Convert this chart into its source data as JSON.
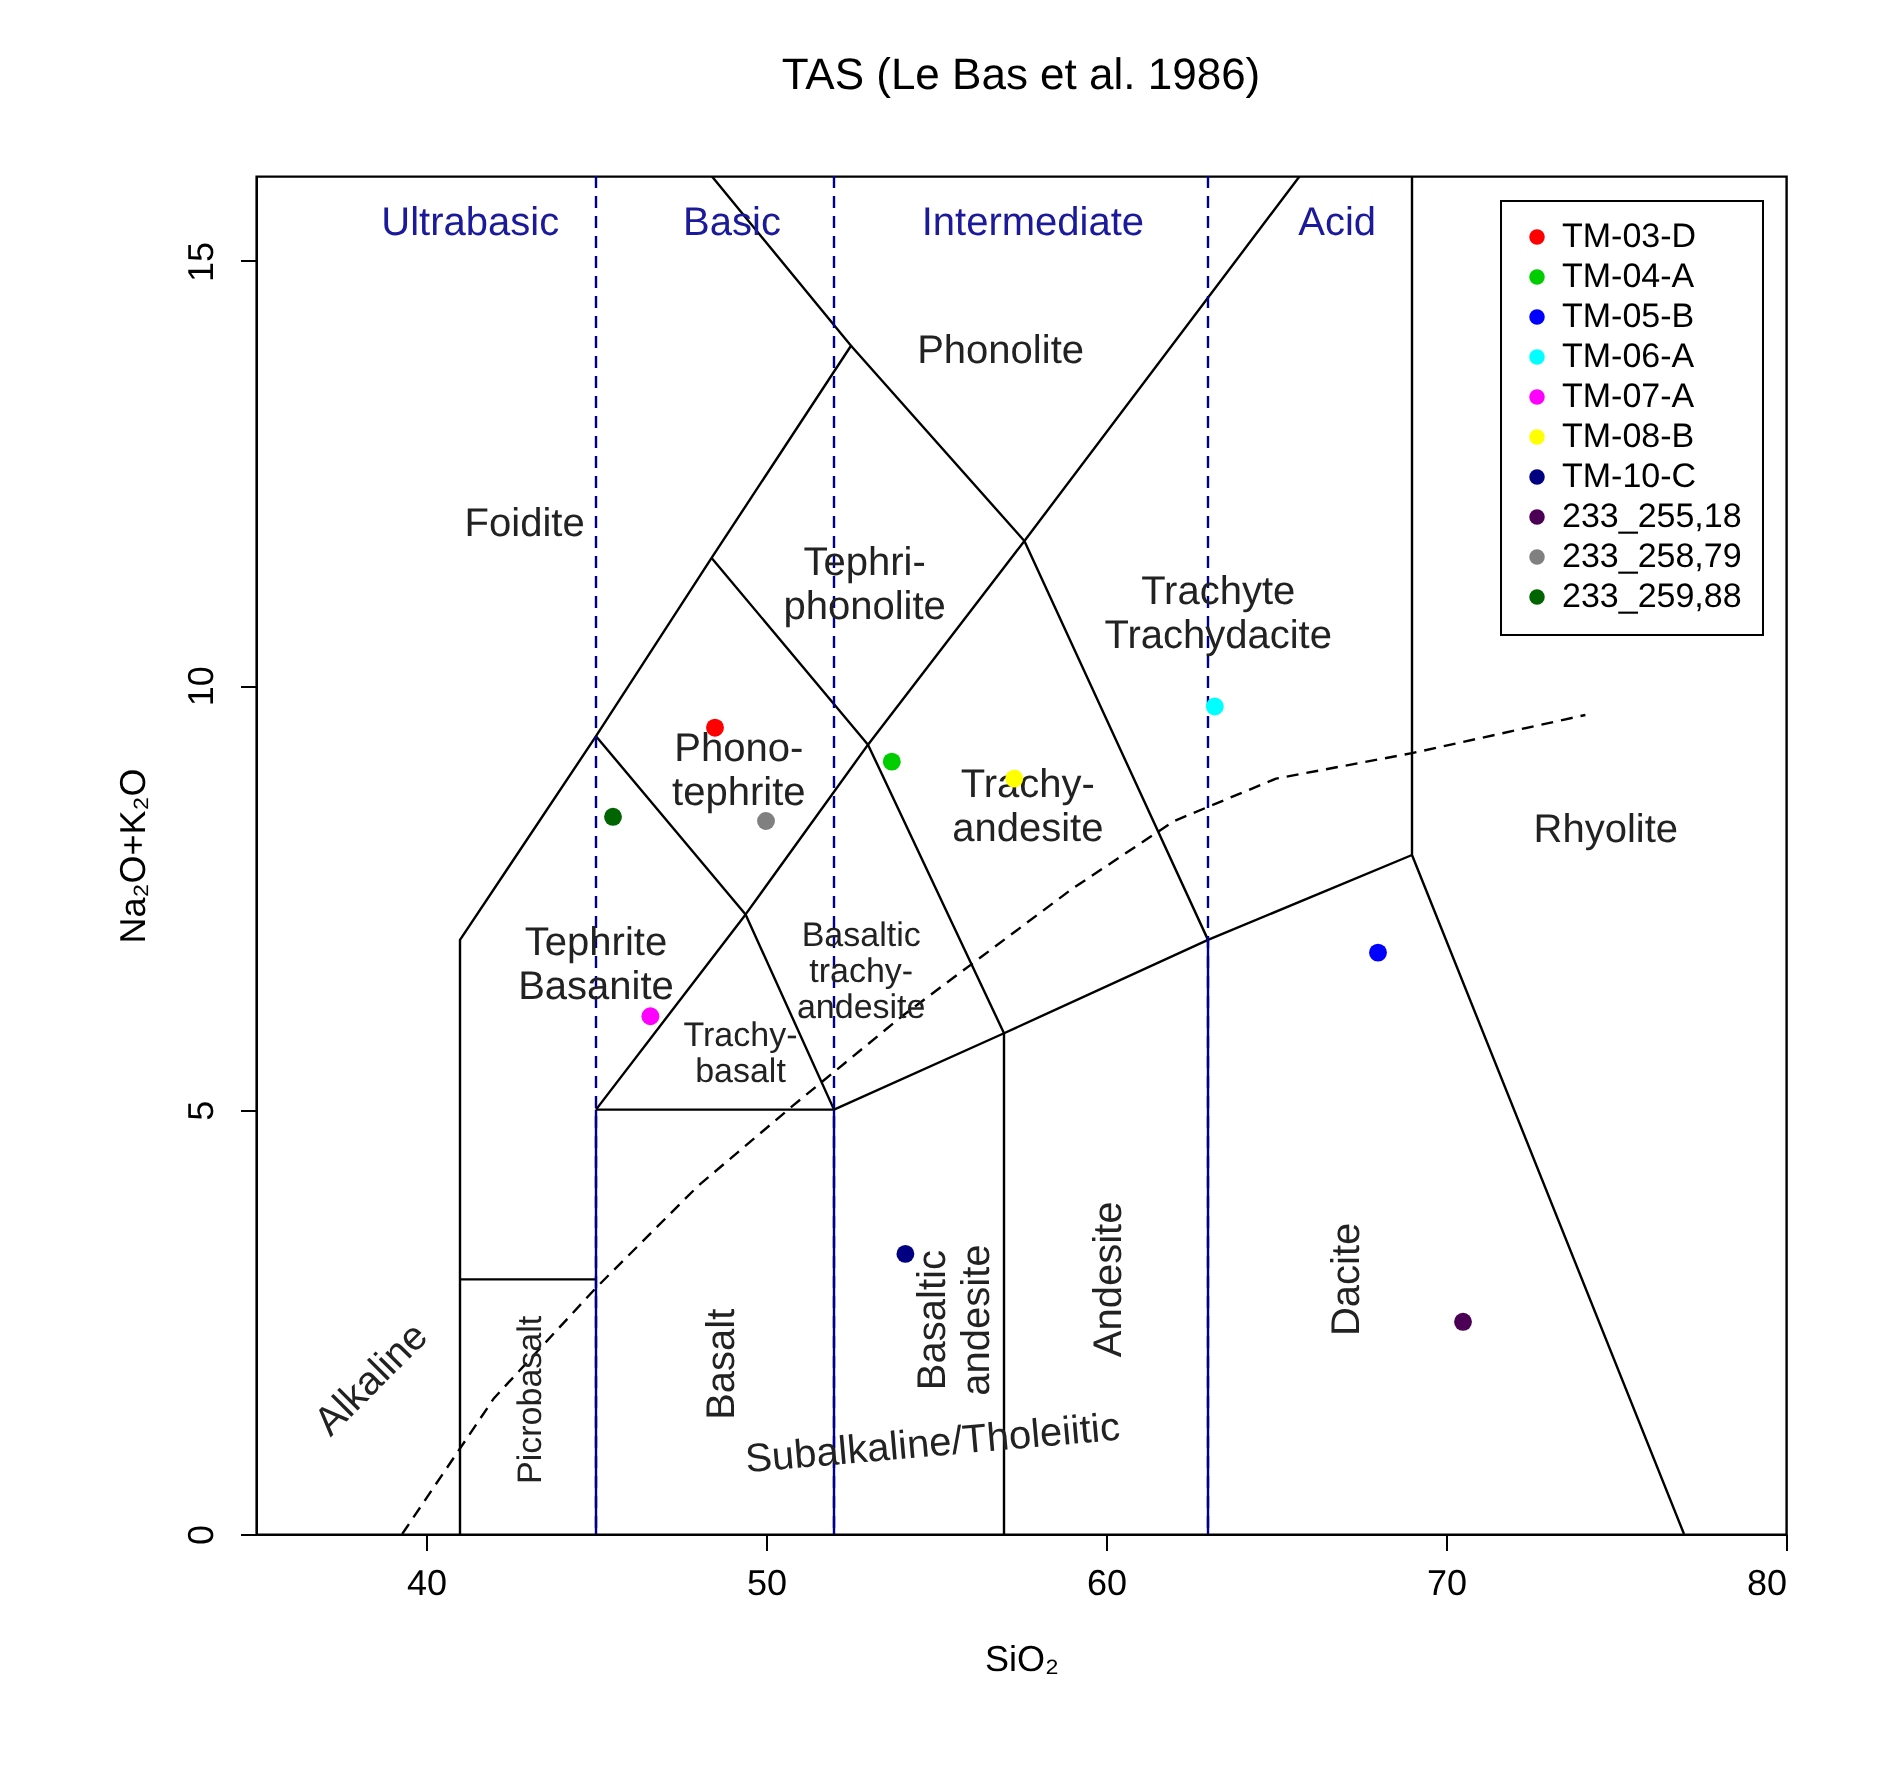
{
  "chart_data": {
    "type": "scatter",
    "title": "TAS (Le Bas et al. 1986)",
    "xlabel": "SiO₂",
    "ylabel": "Na₂O+K₂O",
    "xlim": [
      35,
      80
    ],
    "ylim": [
      0,
      16
    ],
    "xticks": [
      40,
      50,
      60,
      70,
      80
    ],
    "yticks": [
      0,
      5,
      10,
      15
    ],
    "grid": false,
    "legend": "top right",
    "marker": "circle",
    "series": [
      {
        "type": "line",
        "marker": "none",
        "color": "#000000",
        "x": [
          41,
          41,
          45,
          48.4,
          52.5,
          48.4
        ],
        "values": [
          0,
          7,
          9.4,
          11.5,
          14,
          16
        ]
      },
      {
        "type": "line",
        "marker": "none",
        "color": "#000000",
        "x": [
          52.5,
          57.6,
          63
        ],
        "values": [
          14,
          11.7,
          7
        ]
      },
      {
        "type": "line",
        "marker": "none",
        "color": "#000000",
        "x": [
          45,
          49.4,
          53,
          57.6,
          65.7
        ],
        "values": [
          5,
          7.3,
          9.3,
          11.7,
          16
        ]
      },
      {
        "type": "line",
        "marker": "none",
        "color": "#000000",
        "x": [
          45,
          49.4,
          52
        ],
        "values": [
          9.4,
          7.3,
          5
        ]
      },
      {
        "type": "line",
        "marker": "none",
        "color": "#000000",
        "x": [
          48.4,
          53,
          57,
          57
        ],
        "values": [
          11.5,
          9.3,
          5.9,
          0
        ]
      },
      {
        "type": "line",
        "marker": "none",
        "color": "#000000",
        "x": [
          45,
          52,
          57,
          63,
          69
        ],
        "values": [
          5,
          5,
          5.9,
          7,
          8
        ]
      },
      {
        "type": "line",
        "marker": "none",
        "color": "#000000",
        "x": [
          69,
          69,
          77
        ],
        "values": [
          16,
          8,
          0
        ]
      },
      {
        "type": "line",
        "marker": "none",
        "color": "#000000",
        "x": [
          41,
          45
        ],
        "values": [
          3,
          3
        ]
      },
      {
        "type": "line",
        "marker": "none",
        "color": "#00008b",
        "x": [
          45,
          45
        ],
        "values": [
          0,
          5
        ]
      },
      {
        "type": "line",
        "marker": "none",
        "color": "#00008b",
        "x": [
          52,
          52
        ],
        "values": [
          0,
          5
        ]
      },
      {
        "type": "line",
        "marker": "none",
        "color": "#00008b",
        "x": [
          63,
          63
        ],
        "values": [
          0,
          7
        ]
      },
      {
        "type": "line",
        "marker": "none",
        "color": "#000000",
        "line_style": "dashed",
        "x": [
          39.3,
          42,
          45,
          48,
          50.8,
          54,
          56,
          59,
          62,
          65,
          69,
          74.1
        ],
        "values": [
          0,
          1.6,
          2.9,
          4.1,
          5.05,
          6.1,
          6.7,
          7.6,
          8.4,
          8.9,
          9.2,
          9.65
        ]
      },
      {
        "type": "scatter",
        "name": "TM-03-D",
        "color": "#ff0000",
        "x": [
          48.5
        ],
        "values": [
          9.5
        ]
      },
      {
        "type": "scatter",
        "name": "TM-04-A",
        "color": "#00cd00",
        "x": [
          53.7
        ],
        "values": [
          9.1
        ]
      },
      {
        "type": "scatter",
        "name": "TM-05-B",
        "color": "#0000ff",
        "x": [
          68
        ],
        "values": [
          6.85
        ]
      },
      {
        "type": "scatter",
        "name": "TM-06-A",
        "color": "#00ffff",
        "x": [
          63.2
        ],
        "values": [
          9.75
        ]
      },
      {
        "type": "scatter",
        "name": "TM-07-A",
        "color": "#ff00ff",
        "x": [
          46.6
        ],
        "values": [
          6.1
        ]
      },
      {
        "type": "scatter",
        "name": "TM-08-B",
        "color": "#ffff00",
        "x": [
          57.3
        ],
        "values": [
          8.9
        ]
      },
      {
        "type": "scatter",
        "name": "TM-10-C",
        "color": "#000080",
        "x": [
          54.1
        ],
        "values": [
          3.3
        ]
      },
      {
        "type": "scatter",
        "name": "233_255,18",
        "color": "#4b0055",
        "x": [
          70.5
        ],
        "values": [
          2.5
        ]
      },
      {
        "type": "scatter",
        "name": "233_258,79",
        "color": "#808080",
        "x": [
          50
        ],
        "values": [
          8.4
        ]
      },
      {
        "type": "scatter",
        "name": "233_259,88",
        "color": "#006400",
        "x": [
          45.5
        ],
        "values": [
          8.45
        ]
      }
    ],
    "ref_lines": [
      {
        "axis": "x",
        "value": 45,
        "color": "#00008b",
        "line_style": "dashed"
      },
      {
        "axis": "x",
        "value": 52,
        "color": "#00008b",
        "line_style": "dashed"
      },
      {
        "axis": "x",
        "value": 63,
        "color": "#00008b",
        "line_style": "dashed"
      }
    ],
    "annotations": [
      "Ultrabasic",
      "Basic",
      "Intermediate",
      "Acid",
      "Phonolite",
      "Foidite",
      "Tephri-\nphonolite",
      "Trachyte\nTrachydacite",
      "Phono-\ntephrite",
      "Trachy-\nandesite",
      "Rhyolite",
      "Basaltic\ntrachy-\nandesite",
      "Tephrite\nBasanite",
      "Trachy-\nbasalt",
      "Basalt",
      "Basaltic\nandesite",
      "Andesite",
      "Dacite",
      "Picrobasalt",
      "Alkaline",
      "Subalkaline/Tholeiitic"
    ]
  }
}
